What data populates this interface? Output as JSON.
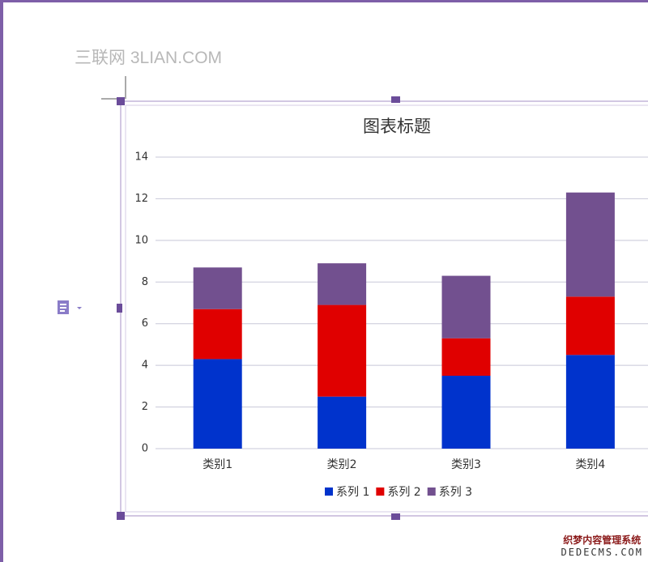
{
  "watermark": "三联网 3LIAN.COM",
  "corner_watermark": {
    "line1": "织梦内容管理系统",
    "line2": "DEDECMS.COM"
  },
  "chart_data": {
    "type": "stacked_bar",
    "title": "图表标题",
    "categories": [
      "类别1",
      "类别2",
      "类别3",
      "类别4"
    ],
    "series": [
      {
        "name": "系列 1",
        "color": "#0033cc",
        "values": [
          4.3,
          2.5,
          3.5,
          4.5
        ]
      },
      {
        "name": "系列 2",
        "color": "#e00000",
        "values": [
          2.4,
          4.4,
          1.8,
          2.8
        ]
      },
      {
        "name": "系列 3",
        "color": "#72508f",
        "values": [
          2,
          2,
          3,
          5
        ]
      }
    ],
    "ylim": [
      0,
      14
    ],
    "yticks": [
      0,
      2,
      4,
      6,
      8,
      10,
      12,
      14
    ],
    "grid": true,
    "legend": "bottom"
  }
}
